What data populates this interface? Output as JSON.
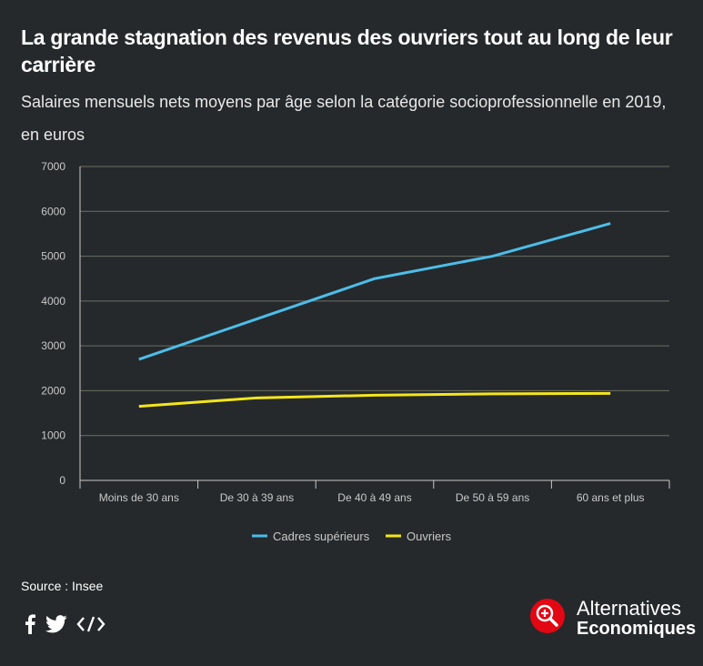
{
  "header": {
    "title": "La grande stagnation des revenus des ouvriers tout au long de leur carrière",
    "subtitle": "Salaires mensuels nets moyens par âge selon la catégorie socioprofessionnelle en 2019, en euros"
  },
  "chart_data": {
    "type": "line",
    "categories": [
      "Moins de 30 ans",
      "De 30 à 39 ans",
      "De 40 à 49 ans",
      "De 50 à 59 ans",
      "60 ans et plus"
    ],
    "series": [
      {
        "name": "Cadres supérieurs",
        "values": [
          2700,
          3600,
          4500,
          5000,
          5730
        ],
        "color": "#4dbde9"
      },
      {
        "name": "Ouvriers",
        "values": [
          1650,
          1840,
          1900,
          1930,
          1940
        ],
        "color": "#f5e61a"
      }
    ],
    "ylim": [
      0,
      7000
    ],
    "yticks": [
      "0",
      "1000",
      "2000",
      "3000",
      "4000",
      "5000",
      "6000",
      "7000"
    ],
    "grid": true,
    "legend_position": "bottom"
  },
  "footer": {
    "source": "Source : Insee",
    "social_icons": [
      "facebook-icon",
      "twitter-icon",
      "embed-icon"
    ],
    "brand_line1": "Alternatives",
    "brand_line2": "Economiques",
    "brand_color": "#e30613"
  }
}
